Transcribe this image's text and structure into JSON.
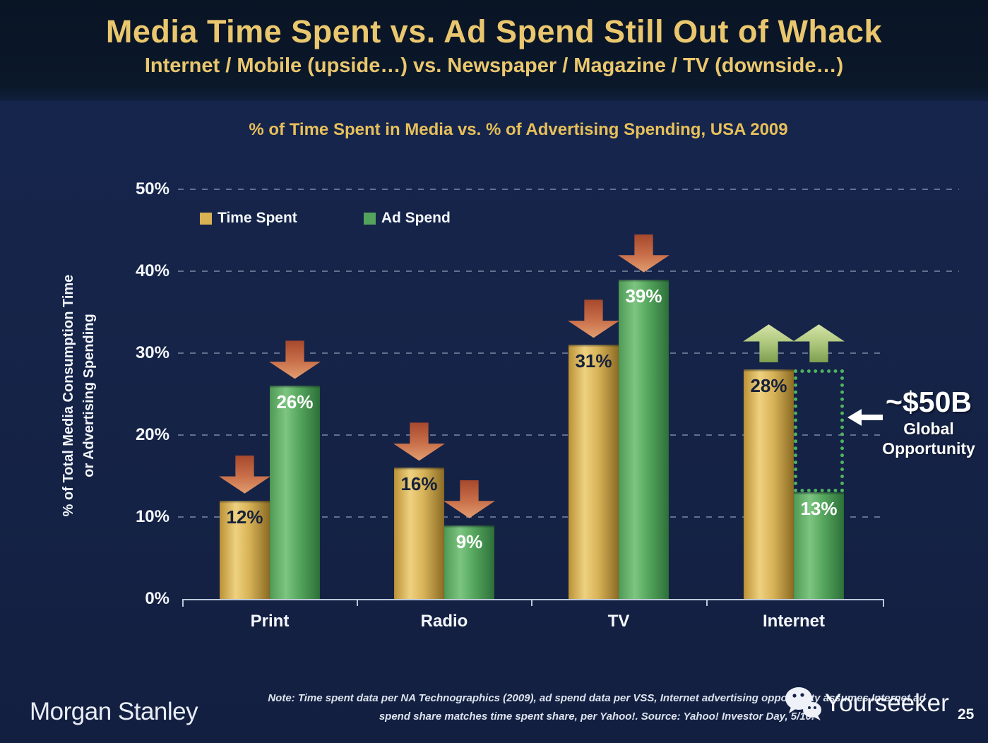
{
  "slide": {
    "title": "Media Time Spent vs. Ad Spend Still Out of Whack",
    "subtitle": "Internet / Mobile (upside…) vs. Newspaper / Magazine / TV (downside…)"
  },
  "chart_data": {
    "type": "bar",
    "title": "% of Time Spent in Media vs. % of Advertising Spending, USA 2009",
    "categories": [
      "Print",
      "Radio",
      "TV",
      "Internet"
    ],
    "series": [
      {
        "name": "Time Spent",
        "values": [
          12,
          16,
          31,
          28
        ],
        "color": "#d9b254",
        "gradient": [
          "#bb9136",
          "#eed180",
          "#d9b459",
          "#8b6b24"
        ],
        "label_color": "#16213b"
      },
      {
        "name": "Ad Spend",
        "values": [
          26,
          9,
          39,
          13
        ],
        "color": "#54a35d",
        "gradient": [
          "#4e9a55",
          "#7dc581",
          "#56a75e",
          "#2d7039"
        ],
        "label_color": "#ffffff"
      }
    ],
    "value_suffix": "%",
    "ylabel_lines": [
      "% of Total Media Consumption Time",
      "or Advertising Spending"
    ],
    "yticks": [
      "0%",
      "10%",
      "20%",
      "30%",
      "40%",
      "50%"
    ],
    "ylim": [
      0,
      50
    ],
    "grid": "horizontal-dashed",
    "legend_position": "top-left-inside",
    "arrows": [
      {
        "category": "Print",
        "series": "Time Spent",
        "direction": "down"
      },
      {
        "category": "Print",
        "series": "Ad Spend",
        "direction": "down"
      },
      {
        "category": "Radio",
        "series": "Time Spent",
        "direction": "down"
      },
      {
        "category": "Radio",
        "series": "Ad Spend",
        "direction": "down"
      },
      {
        "category": "TV",
        "series": "Time Spent",
        "direction": "down"
      },
      {
        "category": "TV",
        "series": "Ad Spend",
        "direction": "down"
      },
      {
        "category": "Internet",
        "series": "Time Spent",
        "direction": "up"
      },
      {
        "category": "Internet",
        "series": "Ad Spend",
        "direction": "up"
      }
    ],
    "opportunity": {
      "label": "~$50B",
      "sublabel_lines": [
        "Global",
        "Opportunity"
      ],
      "box": {
        "category": "Internet",
        "series": "Ad Spend",
        "from_pct": 13,
        "to_pct": 28
      }
    }
  },
  "footer": {
    "brand": "Morgan Stanley",
    "note_lines": [
      "Note: Time spent data per NA Technographics (2009), ad spend data per VSS, Internet advertising opportunity assumes Internet ad",
      "spend share matches time spent share, per Yahoo!. Source: Yahoo! Investor Day, 5/10."
    ],
    "watermark": "Yourseeker",
    "page_number": "25"
  },
  "colors": {
    "gold_accent": "#eac76e",
    "red_arrow_top": "#a6482d",
    "red_arrow_bottom": "#e29d70",
    "green_arrow_top": "#d6e4a8",
    "green_arrow_bottom": "#7e9e50",
    "dotted_box": "#4fb360"
  }
}
